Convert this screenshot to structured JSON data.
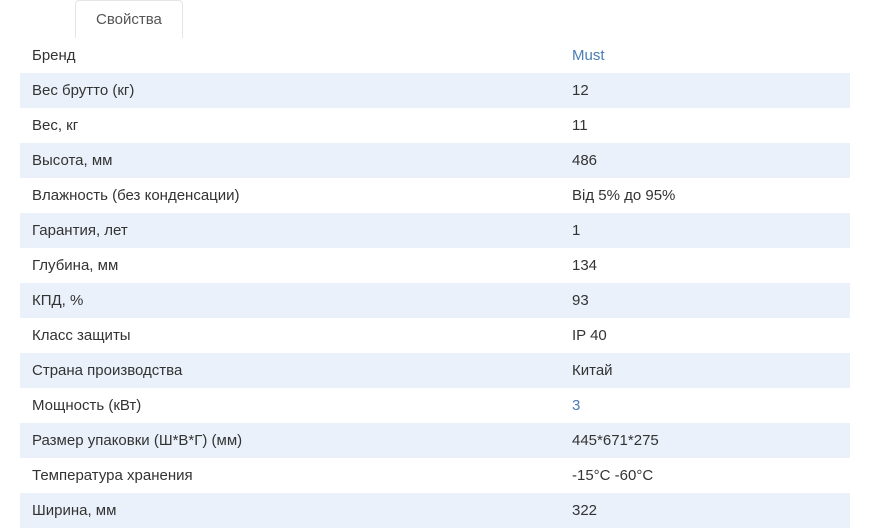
{
  "tab": {
    "label": "Свойства"
  },
  "specs": [
    {
      "label": "Бренд",
      "value": "Must",
      "link": true
    },
    {
      "label": "Вес брутто (кг)",
      "value": "12",
      "link": false
    },
    {
      "label": "Вес, кг",
      "value": "11",
      "link": false
    },
    {
      "label": "Высота, мм",
      "value": "486",
      "link": false
    },
    {
      "label": "Влажность (без конденсации)",
      "value": "Від 5% до 95%",
      "link": false
    },
    {
      "label": "Гарантия, лет",
      "value": "1",
      "link": false
    },
    {
      "label": "Глубина, мм",
      "value": "134",
      "link": false
    },
    {
      "label": "КПД, %",
      "value": "93",
      "link": false
    },
    {
      "label": "Класс защиты",
      "value": "IP 40",
      "link": false
    },
    {
      "label": "Страна производства",
      "value": "Китай",
      "link": false
    },
    {
      "label": "Мощность (кВт)",
      "value": "3",
      "link": true
    },
    {
      "label": "Размер упаковки (Ш*В*Г) (мм)",
      "value": "445*671*275",
      "link": false
    },
    {
      "label": "Температура хранения",
      "value": "-15°C -60°C",
      "link": false
    },
    {
      "label": "Ширина, мм",
      "value": "322",
      "link": false
    }
  ]
}
